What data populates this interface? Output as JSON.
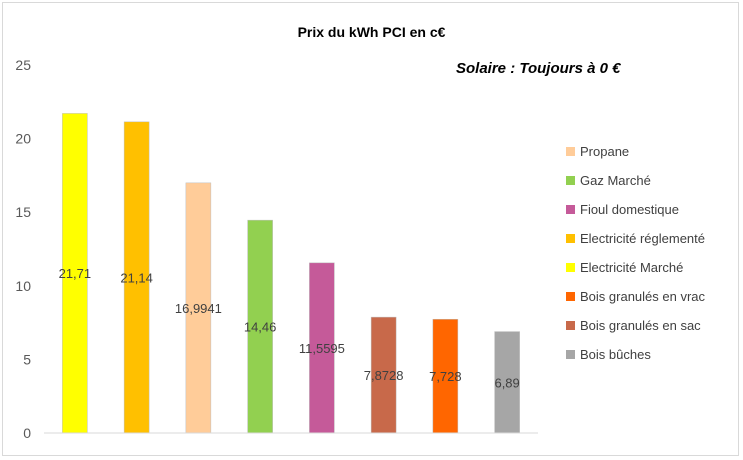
{
  "chart_data": {
    "type": "bar",
    "title": "Prix du kWh PCI en c€",
    "annotation": "Solaire : Toujours à 0 €",
    "xlabel": "",
    "ylabel": "",
    "ylim": [
      0,
      25
    ],
    "yticks": [
      "0",
      "5",
      "10",
      "15",
      "20",
      "25"
    ],
    "ytick_values": [
      0,
      5,
      10,
      15,
      20,
      25
    ],
    "grid": false,
    "legend_position": "right",
    "bars": [
      {
        "name": "Electricité Marché",
        "value": 21.71,
        "label": "21,71",
        "color": "#FFFF00"
      },
      {
        "name": "Electricité réglementé",
        "value": 21.14,
        "label": "21,14",
        "color": "#FFC000"
      },
      {
        "name": "Propane",
        "value": 16.9941,
        "label": "16,9941",
        "color": "#FFCC99"
      },
      {
        "name": "Gaz Marché",
        "value": 14.46,
        "label": "14,46",
        "color": "#92D050"
      },
      {
        "name": "Fioul domestique",
        "value": 11.5595,
        "label": "11,5595",
        "color": "#C55A99"
      },
      {
        "name": "Bois granulés en sac",
        "value": 7.8728,
        "label": "7,8728",
        "color": "#C8694A"
      },
      {
        "name": "Bois granulés en vrac",
        "value": 7.728,
        "label": "7,728",
        "color": "#FF6600"
      },
      {
        "name": "Bois bûches",
        "value": 6.89,
        "label": "6,89",
        "color": "#A6A6A6"
      }
    ],
    "legend": [
      {
        "name": "Propane",
        "color": "#FFCC99"
      },
      {
        "name": "Gaz Marché",
        "color": "#92D050"
      },
      {
        "name": "Fioul domestique",
        "color": "#C55A99"
      },
      {
        "name": "Electricité réglementé",
        "color": "#FFC000"
      },
      {
        "name": "Electricité Marché",
        "color": "#FFFF00"
      },
      {
        "name": "Bois granulés en vrac",
        "color": "#FF6600"
      },
      {
        "name": "Bois granulés en sac",
        "color": "#C8694A"
      },
      {
        "name": "Bois bûches",
        "color": "#A6A6A6"
      }
    ]
  }
}
